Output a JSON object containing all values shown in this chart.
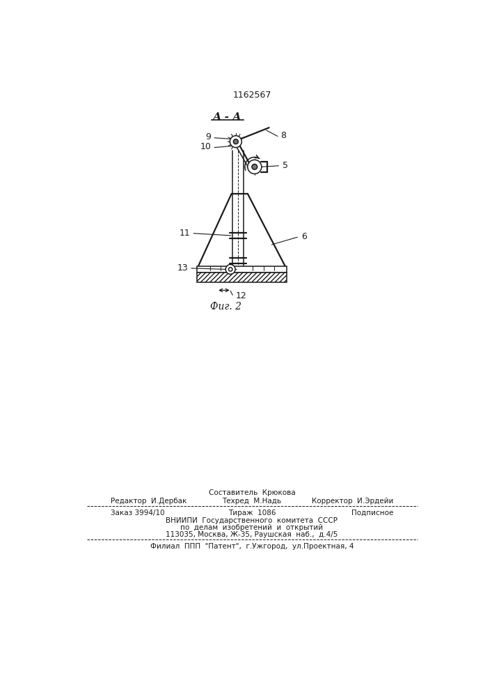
{
  "patent_number": "1162567",
  "section_label": "А - А",
  "bg_color": "#ffffff",
  "line_color": "#1a1a1a",
  "footer_line0": "Составитель  Крюкова",
  "footer_line1_left": "Редактор  И.Дербак",
  "footer_line1_center": "Техред  М.Надь",
  "footer_line1_right": "Корректор  И.Эрдейи",
  "footer_line2_left": "Заказ 3994/10",
  "footer_line2_center": "Тираж  1086",
  "footer_line2_right": "Подписное",
  "footer_line3": "ВНИИПИ  Государственного  комитета  СССР",
  "footer_line4": "по  делам  изобретений  и  открытий",
  "footer_line5": "113035, Москва, Ж-35, Раушская  наб.,  д.4/5",
  "footer_line6": "Филиал  ППП  \"Патент\",  г.Ужгород,  ул.Проектная, 4"
}
